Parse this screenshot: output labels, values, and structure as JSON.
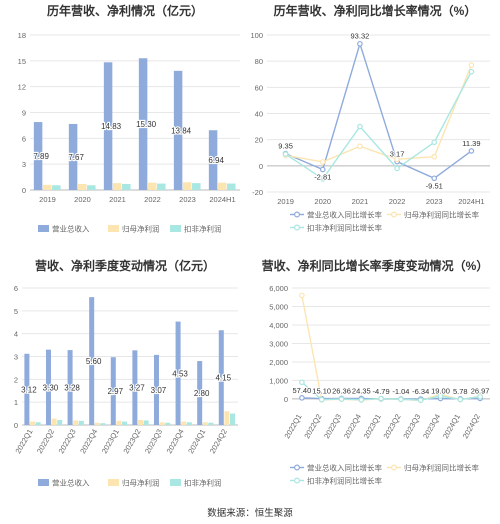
{
  "source": "数据来源：恒生聚源",
  "colors": {
    "bar1": "#8fabdc",
    "bar2": "#fde5b2",
    "bar3": "#a9e7e2",
    "line1": "#8fabdc",
    "line2": "#fde5b2",
    "line3": "#a9e7e2",
    "grid": "#e7e7e7",
    "axis": "#666666",
    "text": "#333333"
  },
  "chart_data": [
    {
      "type": "bar",
      "title": "历年营收、净利情况（亿元）",
      "categories": [
        "2019",
        "2020",
        "2021",
        "2022",
        "2023",
        "2024H1"
      ],
      "series": [
        {
          "name": "营业总收入",
          "values": [
            7.89,
            7.67,
            14.83,
            15.3,
            13.84,
            6.94
          ],
          "labels": [
            "7.89",
            "7.67",
            "14.83",
            "15.30",
            "13.84",
            "6.94"
          ]
        },
        {
          "name": "归母净利润",
          "values": [
            0.6,
            0.7,
            0.8,
            0.85,
            0.9,
            0.85
          ]
        },
        {
          "name": "扣非净利润",
          "values": [
            0.55,
            0.55,
            0.7,
            0.75,
            0.8,
            0.75
          ]
        }
      ],
      "yticks": [
        0,
        3,
        6,
        9,
        12,
        15,
        18
      ],
      "ylim": [
        0,
        18
      ]
    },
    {
      "type": "line",
      "title": "历年营收、净利同比增长率情况（%）",
      "categories": [
        "2019",
        "2020",
        "2021",
        "2022",
        "2023",
        "2024H1"
      ],
      "series": [
        {
          "name": "营业总收入同比增长率",
          "values": [
            9.35,
            -2.81,
            93.32,
            3.17,
            -9.51,
            11.39
          ],
          "labels": [
            "9.35",
            "-2.81",
            "93.32",
            "3.17",
            "-9.51",
            "11.39"
          ]
        },
        {
          "name": "归母净利润同比增长率",
          "values": [
            8,
            3,
            15,
            5,
            7,
            77
          ]
        },
        {
          "name": "扣非净利润同比增长率",
          "values": [
            9,
            -10,
            30,
            -2,
            18,
            72
          ]
        }
      ],
      "yticks": [
        -20,
        0,
        20,
        40,
        60,
        80,
        100
      ],
      "ylim": [
        -20,
        100
      ]
    },
    {
      "type": "bar",
      "title": "营收、净利季度变动情况（亿元）",
      "categories": [
        "2022Q1",
        "2022Q2",
        "2022Q3",
        "2022Q4",
        "2023Q1",
        "2023Q2",
        "2023Q3",
        "2023Q4",
        "2024Q1",
        "2024Q2"
      ],
      "series": [
        {
          "name": "营业总收入",
          "values": [
            3.12,
            3.3,
            3.28,
            5.6,
            2.97,
            3.27,
            3.07,
            4.53,
            2.8,
            4.15
          ],
          "labels": [
            "3.12",
            "3.30",
            "3.28",
            "5.60",
            "2.97",
            "3.27",
            "3.07",
            "4.53",
            "2.80",
            "4.15"
          ]
        },
        {
          "name": "归母净利润",
          "values": [
            0.15,
            0.28,
            0.2,
            0.1,
            0.18,
            0.22,
            0.12,
            0.15,
            0.12,
            0.6
          ]
        },
        {
          "name": "扣非净利润",
          "values": [
            0.12,
            0.22,
            0.18,
            0.08,
            0.15,
            0.2,
            0.1,
            0.12,
            0.1,
            0.5
          ]
        }
      ],
      "yticks": [
        0,
        1,
        2,
        3,
        4,
        5,
        6
      ],
      "ylim": [
        0,
        6
      ]
    },
    {
      "type": "line",
      "title": "营收、净利同比增长率季度变动情况（%）",
      "categories": [
        "2022Q1",
        "2022Q2",
        "2022Q3",
        "2022Q4",
        "2023Q1",
        "2023Q2",
        "2023Q3",
        "2023Q4",
        "2024Q1",
        "2024Q2"
      ],
      "series": [
        {
          "name": "营业总收入同比增长率",
          "values": [
            57.4,
            15.1,
            26.36,
            24.35,
            -4.79,
            -1.04,
            -6.34,
            19.0,
            5.78,
            26.97
          ],
          "labels": [
            "57.40",
            "15.10",
            "26.36",
            "24.35",
            "-4.79",
            "-1.04",
            "-6.34",
            "19.00",
            "5.78",
            "26.97"
          ]
        },
        {
          "name": "归母净利润同比增长率",
          "values": [
            5600,
            -50,
            -20,
            -60,
            10,
            -30,
            -80,
            250,
            -40,
            150
          ]
        },
        {
          "name": "扣非净利润同比增长率",
          "values": [
            900,
            -40,
            -10,
            -50,
            20,
            -20,
            -70,
            150,
            -30,
            120
          ]
        }
      ],
      "yticks": [
        0,
        1000,
        2000,
        3000,
        4000,
        5000,
        6000
      ],
      "ylim": [
        -600,
        6000
      ],
      "ytick_labels": [
        "0",
        "1,000",
        "2,000",
        "3,000",
        "4,000",
        "5,000",
        "6,000"
      ]
    }
  ]
}
